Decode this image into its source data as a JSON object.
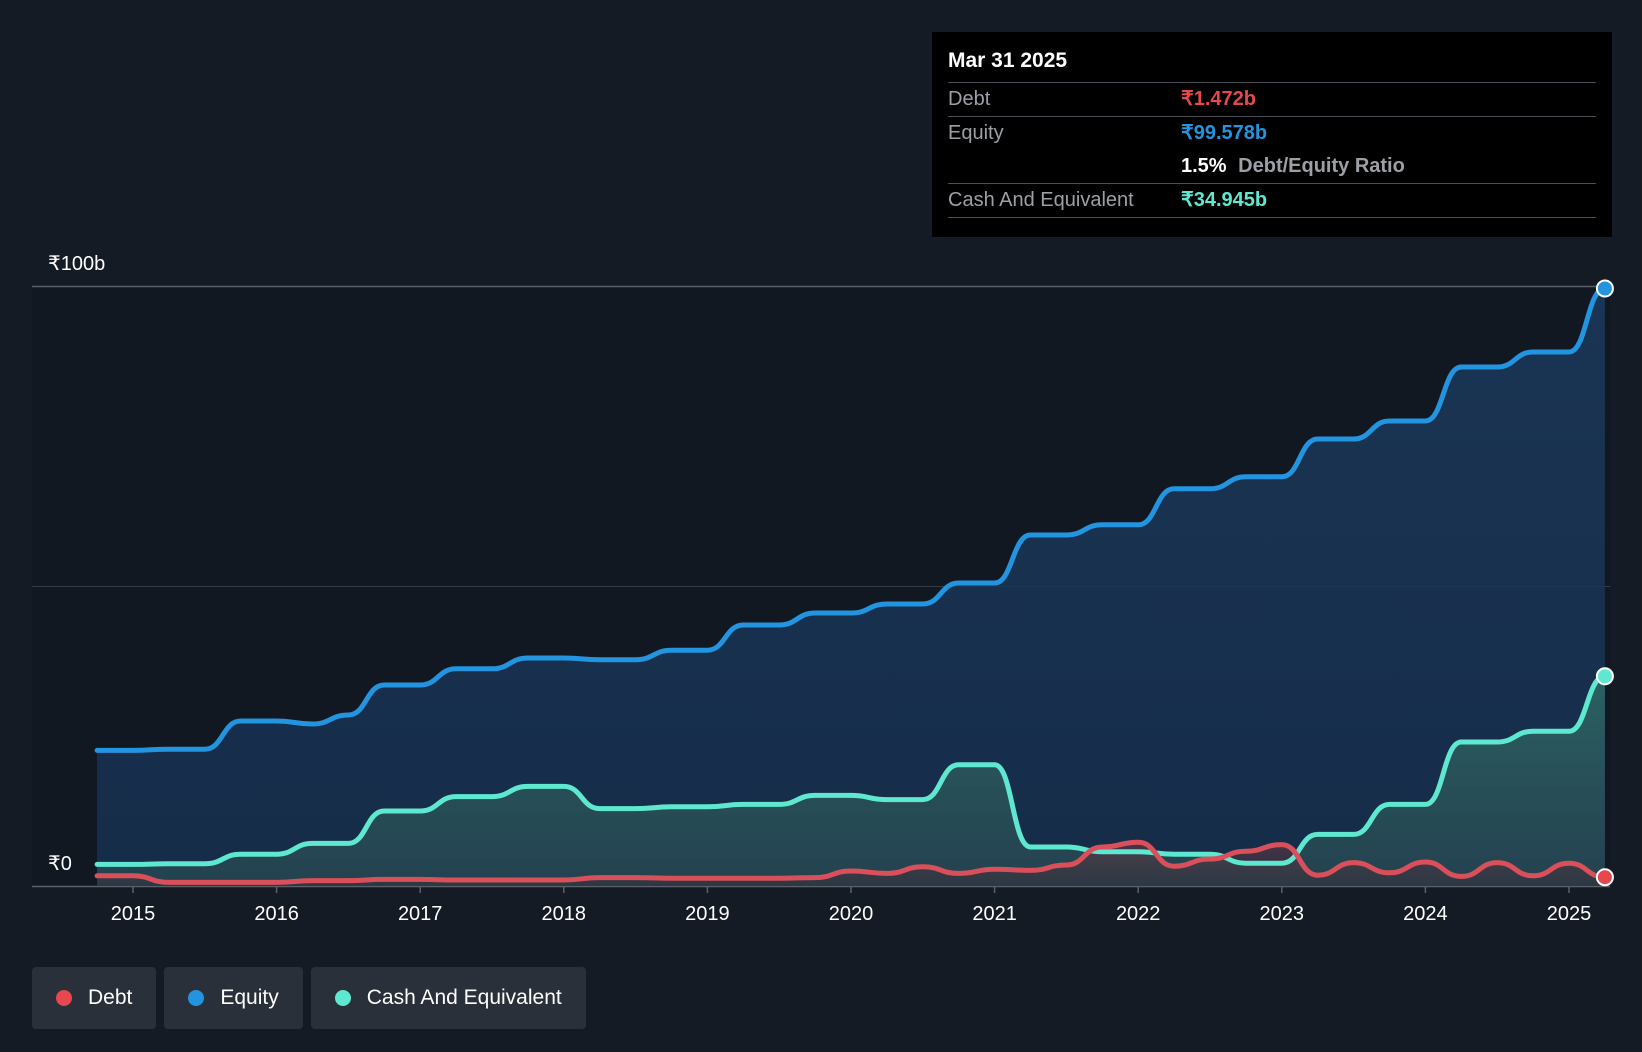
{
  "chart_data": {
    "type": "area",
    "title": "",
    "xlabel": "",
    "ylabel": "",
    "ylim": [
      0,
      100
    ],
    "y_unit": "₹b",
    "y_axis_labels": [
      "₹100b",
      "₹0"
    ],
    "x_tick_labels": [
      "2015",
      "2016",
      "2017",
      "2018",
      "2019",
      "2020",
      "2021",
      "2022",
      "2023",
      "2024",
      "2025"
    ],
    "x_tick_values": [
      2015,
      2016,
      2017,
      2018,
      2019,
      2020,
      2021,
      2022,
      2023,
      2024,
      2025
    ],
    "xlim": [
      2014.5,
      2025.3
    ],
    "gridlines": [
      0,
      50,
      100
    ],
    "series": [
      {
        "name": "Equity",
        "color": "#2394df",
        "values": [
          [
            2014.75,
            22.6
          ],
          [
            2015.0,
            22.6
          ],
          [
            2015.25,
            22.8
          ],
          [
            2015.5,
            22.8
          ],
          [
            2015.75,
            27.5
          ],
          [
            2016.0,
            27.5
          ],
          [
            2016.25,
            27.0
          ],
          [
            2016.5,
            28.5
          ],
          [
            2016.75,
            33.5
          ],
          [
            2017.0,
            33.5
          ],
          [
            2017.25,
            36.2
          ],
          [
            2017.5,
            36.2
          ],
          [
            2017.75,
            38.0
          ],
          [
            2018.0,
            38.0
          ],
          [
            2018.25,
            37.7
          ],
          [
            2018.5,
            37.7
          ],
          [
            2018.75,
            39.3
          ],
          [
            2019.0,
            39.3
          ],
          [
            2019.25,
            43.5
          ],
          [
            2019.5,
            43.5
          ],
          [
            2019.75,
            45.5
          ],
          [
            2020.0,
            45.5
          ],
          [
            2020.25,
            47.0
          ],
          [
            2020.5,
            47.0
          ],
          [
            2020.75,
            50.5
          ],
          [
            2021.0,
            50.5
          ],
          [
            2021.25,
            58.5
          ],
          [
            2021.5,
            58.5
          ],
          [
            2021.75,
            60.2
          ],
          [
            2022.0,
            60.2
          ],
          [
            2022.25,
            66.2
          ],
          [
            2022.5,
            66.2
          ],
          [
            2022.75,
            68.2
          ],
          [
            2023.0,
            68.2
          ],
          [
            2023.25,
            74.5
          ],
          [
            2023.5,
            74.5
          ],
          [
            2023.75,
            77.5
          ],
          [
            2024.0,
            77.5
          ],
          [
            2024.25,
            86.5
          ],
          [
            2024.5,
            86.5
          ],
          [
            2024.75,
            89.0
          ],
          [
            2025.0,
            89.0
          ],
          [
            2025.25,
            99.578
          ]
        ]
      },
      {
        "name": "Cash And Equivalent",
        "color": "#5ee8d0",
        "values": [
          [
            2014.75,
            3.6
          ],
          [
            2015.0,
            3.6
          ],
          [
            2015.25,
            3.7
          ],
          [
            2015.5,
            3.7
          ],
          [
            2015.75,
            5.3
          ],
          [
            2016.0,
            5.3
          ],
          [
            2016.25,
            7.1
          ],
          [
            2016.5,
            7.1
          ],
          [
            2016.75,
            12.5
          ],
          [
            2017.0,
            12.5
          ],
          [
            2017.25,
            14.9
          ],
          [
            2017.5,
            14.9
          ],
          [
            2017.75,
            16.6
          ],
          [
            2018.0,
            16.6
          ],
          [
            2018.25,
            12.9
          ],
          [
            2018.5,
            12.9
          ],
          [
            2018.75,
            13.2
          ],
          [
            2019.0,
            13.2
          ],
          [
            2019.25,
            13.6
          ],
          [
            2019.5,
            13.6
          ],
          [
            2019.75,
            15.1
          ],
          [
            2020.0,
            15.1
          ],
          [
            2020.25,
            14.4
          ],
          [
            2020.5,
            14.4
          ],
          [
            2020.75,
            20.2
          ],
          [
            2021.0,
            20.2
          ],
          [
            2021.25,
            6.5
          ],
          [
            2021.5,
            6.5
          ],
          [
            2021.75,
            5.7
          ],
          [
            2022.0,
            5.7
          ],
          [
            2022.25,
            5.3
          ],
          [
            2022.5,
            5.3
          ],
          [
            2022.75,
            3.8
          ],
          [
            2023.0,
            3.8
          ],
          [
            2023.25,
            8.6
          ],
          [
            2023.5,
            8.6
          ],
          [
            2023.75,
            13.6
          ],
          [
            2024.0,
            13.6
          ],
          [
            2024.25,
            24.0
          ],
          [
            2024.5,
            24.0
          ],
          [
            2024.75,
            25.8
          ],
          [
            2025.0,
            25.8
          ],
          [
            2025.25,
            34.945
          ]
        ]
      },
      {
        "name": "Debt",
        "color": "#e5484d",
        "values": [
          [
            2014.75,
            1.7
          ],
          [
            2015.0,
            1.7
          ],
          [
            2015.25,
            0.6
          ],
          [
            2015.5,
            0.6
          ],
          [
            2015.75,
            0.6
          ],
          [
            2016.0,
            0.6
          ],
          [
            2016.25,
            0.9
          ],
          [
            2016.5,
            0.9
          ],
          [
            2016.75,
            1.1
          ],
          [
            2017.0,
            1.1
          ],
          [
            2017.25,
            1.0
          ],
          [
            2017.5,
            1.0
          ],
          [
            2017.75,
            1.0
          ],
          [
            2018.0,
            1.0
          ],
          [
            2018.25,
            1.4
          ],
          [
            2018.5,
            1.4
          ],
          [
            2018.75,
            1.3
          ],
          [
            2019.0,
            1.3
          ],
          [
            2019.25,
            1.3
          ],
          [
            2019.5,
            1.3
          ],
          [
            2019.75,
            1.4
          ],
          [
            2020.0,
            2.5
          ],
          [
            2020.25,
            2.1
          ],
          [
            2020.5,
            3.2
          ],
          [
            2020.75,
            2.1
          ],
          [
            2021.0,
            2.8
          ],
          [
            2021.25,
            2.6
          ],
          [
            2021.5,
            3.5
          ],
          [
            2021.75,
            6.5
          ],
          [
            2022.0,
            7.3
          ],
          [
            2022.25,
            3.3
          ],
          [
            2022.5,
            4.5
          ],
          [
            2022.75,
            5.8
          ],
          [
            2023.0,
            6.9
          ],
          [
            2023.25,
            1.8
          ],
          [
            2023.5,
            3.9
          ],
          [
            2023.75,
            2.2
          ],
          [
            2024.0,
            4.0
          ],
          [
            2024.25,
            1.6
          ],
          [
            2024.5,
            3.9
          ],
          [
            2024.75,
            1.7
          ],
          [
            2025.0,
            3.8
          ],
          [
            2025.25,
            1.472
          ]
        ]
      }
    ]
  },
  "tooltip": {
    "date": "Mar 31 2025",
    "debt_label": "Debt",
    "debt_value": "₹1.472b",
    "equity_label": "Equity",
    "equity_value": "₹99.578b",
    "ratio_value": "1.5%",
    "ratio_label": "Debt/Equity Ratio",
    "cash_label": "Cash And Equivalent",
    "cash_value": "₹34.945b"
  },
  "legend": {
    "items": [
      {
        "label": "Debt",
        "color": "#e5484d"
      },
      {
        "label": "Equity",
        "color": "#2394df"
      },
      {
        "label": "Cash And Equivalent",
        "color": "#5ee8d0"
      }
    ]
  }
}
